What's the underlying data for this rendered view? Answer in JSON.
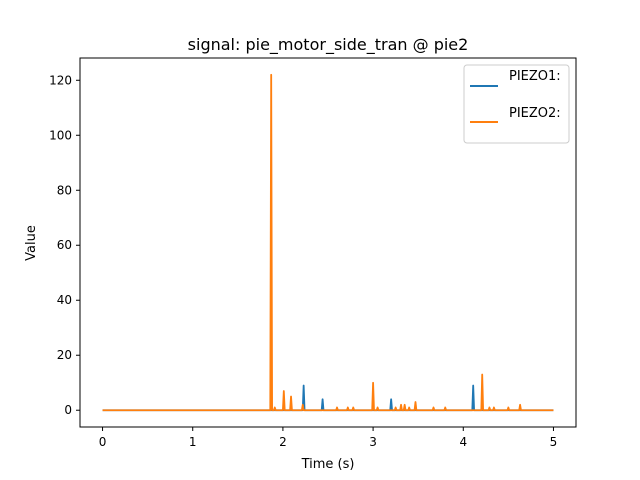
{
  "chart_data": {
    "type": "line",
    "title": "signal: pie_motor_side_tran @ pie2",
    "xlabel": "Time (s)",
    "ylabel": "Value",
    "xlim": [
      -0.25,
      5.25
    ],
    "ylim": [
      -6.1,
      128.1
    ],
    "xticks": [
      0,
      1,
      2,
      3,
      4,
      5
    ],
    "yticks": [
      0,
      20,
      40,
      60,
      80,
      100,
      120
    ],
    "legend_position": "top-right",
    "grid": false,
    "series": [
      {
        "name": "PIEZO1:",
        "color": "#1f77b4",
        "x": [
          0,
          2.22,
          2.23,
          2.24,
          2.43,
          2.44,
          2.45,
          3.19,
          3.2,
          3.21,
          4.1,
          4.11,
          4.12,
          5
        ],
        "y": [
          0,
          0,
          9,
          0,
          0,
          4,
          0,
          0,
          4,
          0,
          0,
          9,
          0,
          0
        ]
      },
      {
        "name": "PIEZO2:",
        "color": "#ff7f0e",
        "x": [
          0,
          1.86,
          1.87,
          1.88,
          1.9,
          1.91,
          1.92,
          2.0,
          2.01,
          2.02,
          2.08,
          2.09,
          2.1,
          2.21,
          2.22,
          2.23,
          2.59,
          2.6,
          2.61,
          2.71,
          2.72,
          2.73,
          2.77,
          2.78,
          2.79,
          2.99,
          3.0,
          3.01,
          3.04,
          3.05,
          3.06,
          3.24,
          3.25,
          3.26,
          3.3,
          3.31,
          3.32,
          3.34,
          3.35,
          3.36,
          3.39,
          3.4,
          3.41,
          3.46,
          3.47,
          3.48,
          3.66,
          3.67,
          3.68,
          3.79,
          3.8,
          3.81,
          4.2,
          4.21,
          4.22,
          4.28,
          4.29,
          4.3,
          4.33,
          4.34,
          4.35,
          4.49,
          4.5,
          4.51,
          4.62,
          4.63,
          4.64,
          5
        ],
        "y": [
          0,
          0,
          122,
          0,
          0,
          1,
          0,
          0,
          7,
          0,
          0,
          5,
          0,
          0,
          2,
          0,
          0,
          1,
          0,
          0,
          1,
          0,
          0,
          1,
          0,
          0,
          10,
          0,
          0,
          1,
          0,
          0,
          1,
          0,
          0,
          2,
          0,
          0,
          2,
          0,
          0,
          1,
          0,
          0,
          3,
          0,
          0,
          1,
          0,
          0,
          1,
          0,
          0,
          13,
          0,
          0,
          1,
          0,
          0,
          1,
          0,
          0,
          1,
          0,
          0,
          2,
          0,
          0
        ]
      }
    ]
  }
}
